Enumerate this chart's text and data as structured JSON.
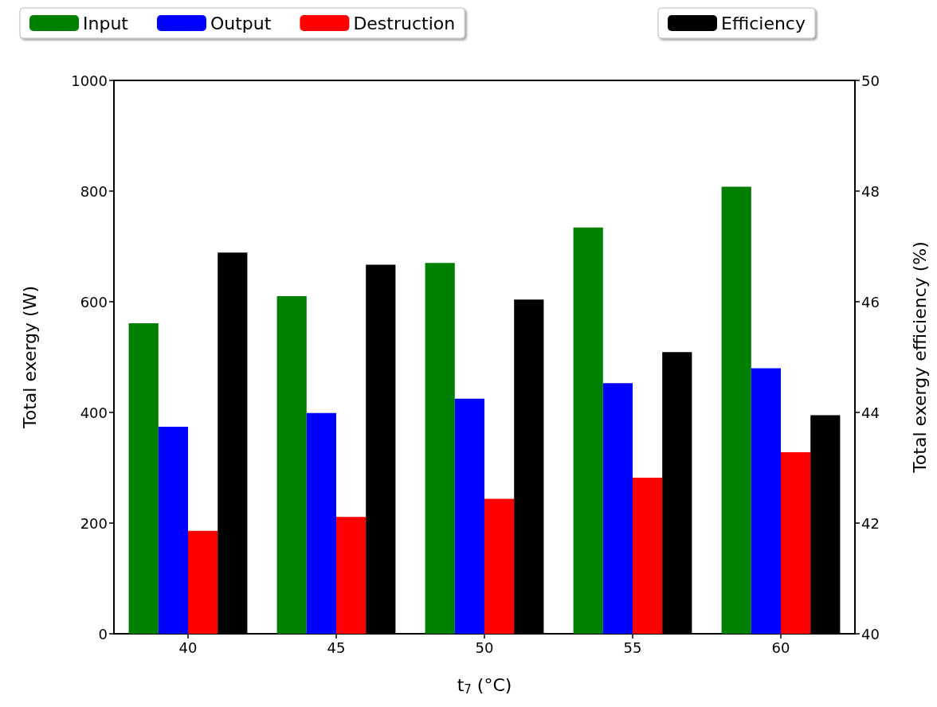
{
  "chart_data": {
    "type": "bar",
    "categories": [
      "40",
      "45",
      "50",
      "55",
      "60"
    ],
    "xlabel": "t$_{7}$ (°C)",
    "ylabel": "Total exergy (W)",
    "y2label": "Total exergy efficiency (%)",
    "ylim": [
      0,
      1000
    ],
    "yticks": [
      0,
      200,
      400,
      600,
      800,
      1000
    ],
    "y2lim": [
      40,
      50
    ],
    "y2ticks": [
      40,
      42,
      44,
      46,
      48,
      50
    ],
    "legend": "top",
    "grid": false,
    "series": [
      {
        "name": "Input",
        "color": "#008000",
        "values": [
          561,
          610,
          670,
          734,
          808
        ]
      },
      {
        "name": "Output",
        "color": "#0000ff",
        "values": [
          374,
          399,
          425,
          453,
          480
        ]
      },
      {
        "name": "Destruction",
        "color": "#ff0000",
        "values": [
          186,
          211,
          244,
          282,
          328
        ]
      },
      {
        "name": "Efficiency",
        "color": "#000000",
        "axis": "y2",
        "values": [
          46.89,
          46.67,
          46.04,
          45.09,
          43.95
        ]
      }
    ]
  }
}
